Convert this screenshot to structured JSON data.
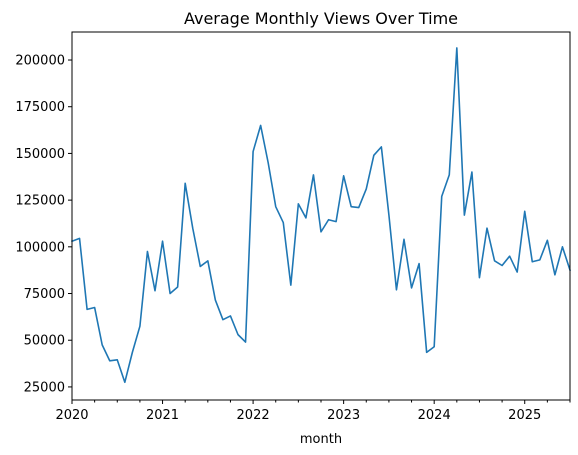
{
  "chart_data": {
    "type": "line",
    "title": "Average Monthly Views Over Time",
    "xlabel": "month",
    "ylabel": "",
    "x_range": [
      "2020-01",
      "2025-07"
    ],
    "ylim": [
      18000,
      215000
    ],
    "x_tick_labels": [
      {
        "x": "2020-01",
        "label": "2020"
      },
      {
        "x": "2021-01",
        "label": "2021"
      },
      {
        "x": "2022-01",
        "label": "2022"
      },
      {
        "x": "2023-01",
        "label": "2023"
      },
      {
        "x": "2024-01",
        "label": "2024"
      },
      {
        "x": "2025-01",
        "label": "2025"
      }
    ],
    "y_ticks": [
      25000,
      50000,
      75000,
      100000,
      125000,
      150000,
      175000,
      200000
    ],
    "y_tick_labels": [
      "25000",
      "50000",
      "75000",
      "100000",
      "125000",
      "150000",
      "175000",
      "200000"
    ],
    "grid": false,
    "series": [
      {
        "color": "#1f77b4",
        "x": [
          "2020-01",
          "2020-02",
          "2020-03",
          "2020-04",
          "2020-05",
          "2020-06",
          "2020-07",
          "2020-08",
          "2020-09",
          "2020-10",
          "2020-11",
          "2020-12",
          "2021-01",
          "2021-02",
          "2021-03",
          "2021-04",
          "2021-05",
          "2021-06",
          "2021-07",
          "2021-08",
          "2021-09",
          "2021-10",
          "2021-11",
          "2021-12",
          "2022-01",
          "2022-02",
          "2022-03",
          "2022-04",
          "2022-05",
          "2022-06",
          "2022-07",
          "2022-08",
          "2022-09",
          "2022-10",
          "2022-11",
          "2022-12",
          "2023-01",
          "2023-02",
          "2023-03",
          "2023-04",
          "2023-05",
          "2023-06",
          "2023-07",
          "2023-08",
          "2023-09",
          "2023-10",
          "2023-11",
          "2023-12",
          "2024-01",
          "2024-02",
          "2024-03",
          "2024-04",
          "2024-05",
          "2024-06",
          "2024-07",
          "2024-08",
          "2024-09",
          "2024-10",
          "2024-11",
          "2024-12",
          "2025-01",
          "2025-02",
          "2025-03",
          "2025-04",
          "2025-05",
          "2025-06",
          "2025-07"
        ],
        "values": [
          103000,
          104500,
          66500,
          67500,
          47500,
          39000,
          39500,
          27500,
          43500,
          57500,
          97500,
          76500,
          103000,
          75000,
          78500,
          134000,
          110000,
          89500,
          92500,
          71500,
          61000,
          63000,
          53000,
          49000,
          151000,
          165000,
          145000,
          121500,
          113000,
          79500,
          123000,
          115500,
          138500,
          108000,
          114500,
          113500,
          138000,
          121500,
          121000,
          131000,
          149000,
          153500,
          117000,
          77000,
          104000,
          78000,
          91000,
          43500,
          46500,
          127000,
          138500,
          206500,
          117000,
          140000,
          83500,
          110000,
          92500,
          90000,
          95000,
          86500,
          119000,
          92000,
          93000,
          103500,
          85000,
          100000,
          87500
        ]
      }
    ]
  }
}
